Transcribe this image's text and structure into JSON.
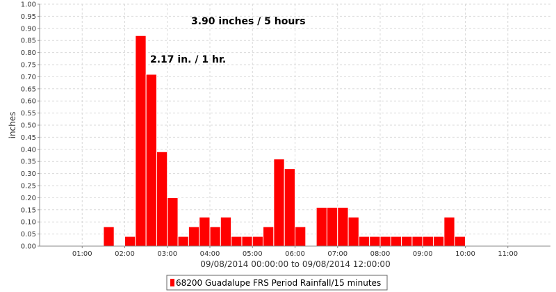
{
  "chart_data": {
    "type": "bar",
    "x_axis_label": "09/08/2014 00:00:00 to 09/08/2014 12:00:00",
    "y_axis_label": "inches",
    "x_ticks": [
      "01:00",
      "02:00",
      "03:00",
      "04:00",
      "05:00",
      "06:00",
      "07:00",
      "08:00",
      "09:00",
      "10:00",
      "11:00"
    ],
    "y_ticks": [
      "0.00",
      "0.05",
      "0.10",
      "0.15",
      "0.20",
      "0.25",
      "0.30",
      "0.35",
      "0.40",
      "0.45",
      "0.50",
      "0.55",
      "0.60",
      "0.65",
      "0.70",
      "0.75",
      "0.80",
      "0.85",
      "0.90",
      "0.95",
      "1.00"
    ],
    "ylim": [
      0,
      1.0
    ],
    "x_range_hours": [
      0,
      12
    ],
    "grid": true,
    "annotations": [
      "3.90 inches / 5 hours",
      "2.17 in. / 1 hr."
    ],
    "series": [
      {
        "name": "68200 Guadalupe FRS Period Rainfall/15 minutes",
        "color": "#ff0000",
        "points": [
          {
            "time": "01:30",
            "value": 0.08
          },
          {
            "time": "02:00",
            "value": 0.04
          },
          {
            "time": "02:15",
            "value": 0.87
          },
          {
            "time": "02:30",
            "value": 0.71
          },
          {
            "time": "02:45",
            "value": 0.39
          },
          {
            "time": "03:00",
            "value": 0.2
          },
          {
            "time": "03:15",
            "value": 0.04
          },
          {
            "time": "03:30",
            "value": 0.08
          },
          {
            "time": "03:45",
            "value": 0.12
          },
          {
            "time": "04:00",
            "value": 0.08
          },
          {
            "time": "04:15",
            "value": 0.12
          },
          {
            "time": "04:30",
            "value": 0.04
          },
          {
            "time": "04:45",
            "value": 0.04
          },
          {
            "time": "05:00",
            "value": 0.04
          },
          {
            "time": "05:15",
            "value": 0.08
          },
          {
            "time": "05:30",
            "value": 0.36
          },
          {
            "time": "05:45",
            "value": 0.32
          },
          {
            "time": "06:00",
            "value": 0.08
          },
          {
            "time": "06:30",
            "value": 0.16
          },
          {
            "time": "06:45",
            "value": 0.16
          },
          {
            "time": "07:00",
            "value": 0.16
          },
          {
            "time": "07:15",
            "value": 0.12
          },
          {
            "time": "07:30",
            "value": 0.04
          },
          {
            "time": "07:45",
            "value": 0.04
          },
          {
            "time": "08:00",
            "value": 0.04
          },
          {
            "time": "08:15",
            "value": 0.04
          },
          {
            "time": "08:30",
            "value": 0.04
          },
          {
            "time": "08:45",
            "value": 0.04
          },
          {
            "time": "09:00",
            "value": 0.04
          },
          {
            "time": "09:15",
            "value": 0.04
          },
          {
            "time": "09:30",
            "value": 0.12
          },
          {
            "time": "09:45",
            "value": 0.04
          }
        ]
      }
    ]
  }
}
